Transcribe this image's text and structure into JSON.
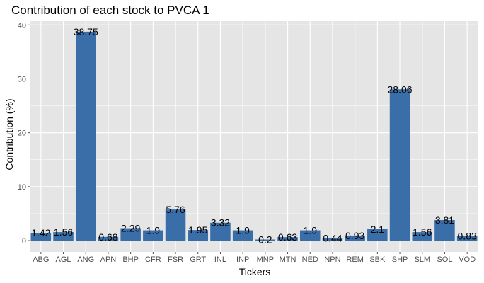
{
  "chart_data": {
    "type": "bar",
    "title": "Contribution of each stock to PVCA 1",
    "xlabel": "Tickers",
    "ylabel": "Contribution (%)",
    "ylim": [
      -2.1,
      40.7
    ],
    "yticks": [
      0,
      10,
      20,
      30,
      40
    ],
    "grid": true,
    "legend": "none",
    "colors": {
      "bar": "#3a6ea8",
      "panel": "#e5e5e5",
      "grid": "#ffffff"
    },
    "categories": [
      "ABG",
      "AGL",
      "ANG",
      "APN",
      "BHP",
      "CFR",
      "FSR",
      "GRT",
      "INL",
      "INP",
      "MNP",
      "MTN",
      "NED",
      "NPN",
      "REM",
      "SBK",
      "SHP",
      "SLM",
      "SOL",
      "VOD"
    ],
    "values": [
      1.42,
      1.56,
      38.75,
      0.68,
      2.29,
      1.9,
      5.76,
      1.95,
      3.32,
      1.9,
      0.2,
      0.63,
      1.9,
      0.44,
      0.93,
      2.1,
      28.06,
      1.56,
      3.81,
      0.83
    ],
    "labels": [
      "1.42",
      "1.56",
      "38.75",
      "0.68",
      "2.29",
      "1.9",
      "5.76",
      "1.95",
      "3.32",
      "1.9",
      "0.2",
      "0.63",
      "1.9",
      "0.44",
      "0.93",
      "2.1",
      "28.06",
      "1.56",
      "3.81",
      "0.83"
    ]
  }
}
